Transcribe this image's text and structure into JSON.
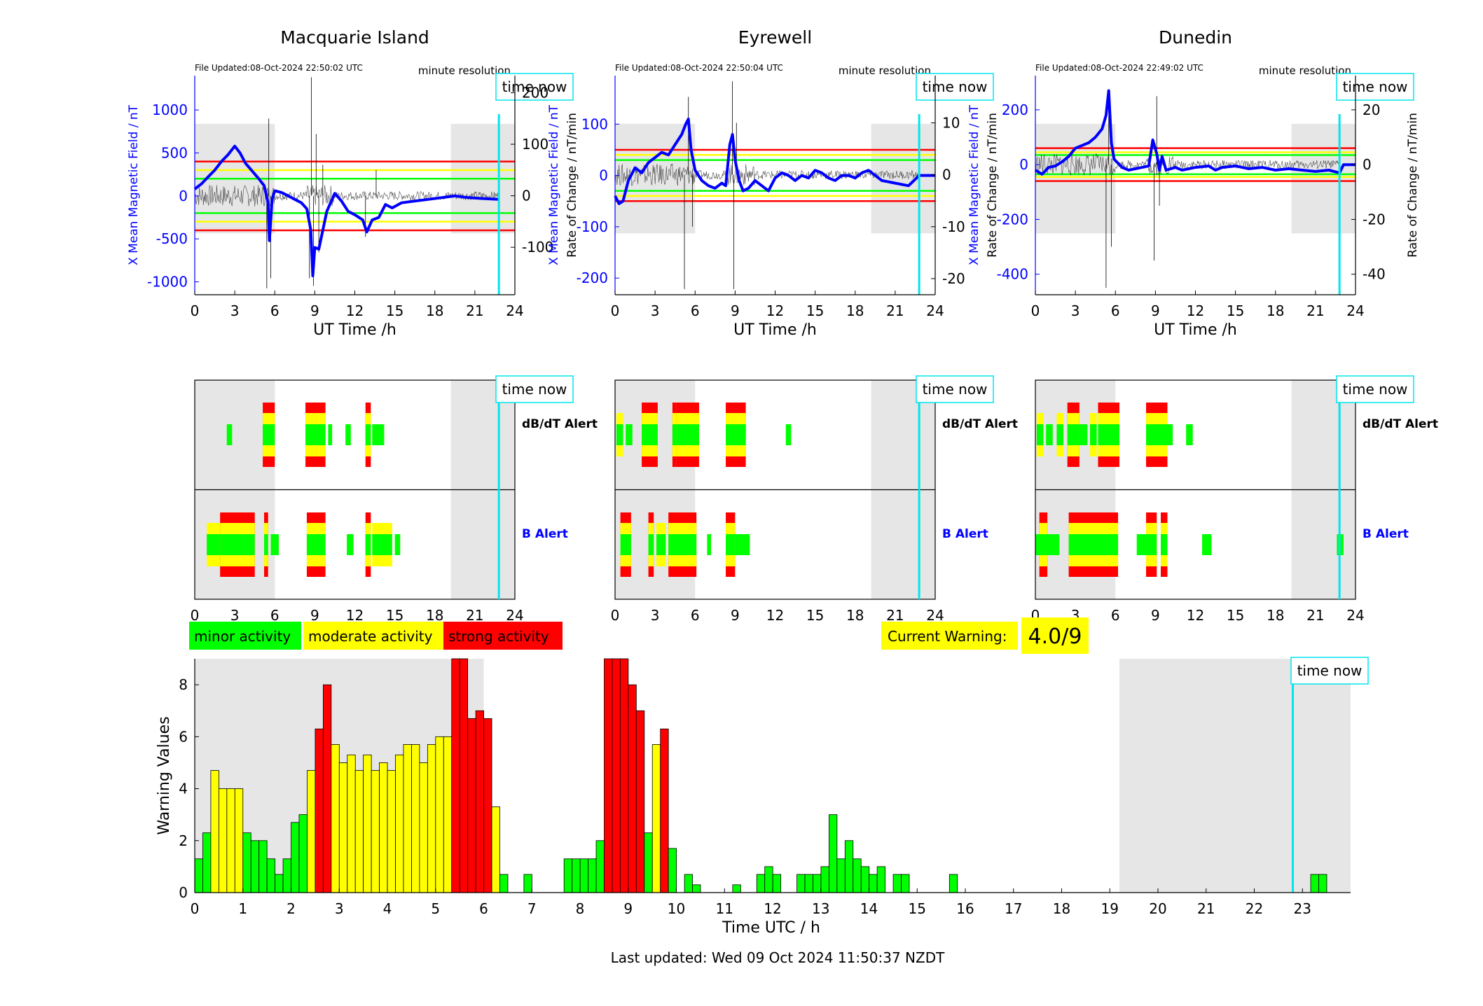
{
  "footer": {
    "last_updated": "Last updated: Wed 09 Oct 2024 11:50:37 NZDT"
  },
  "colors": {
    "minor": "#00ff00",
    "moderate": "#ffff00",
    "strong": "#ff0000",
    "x_field": "#0000ff",
    "rate": "#000000",
    "time_now": "#00e5ee",
    "night_shade": "#e6e6e6"
  },
  "common": {
    "time_now_label": "time now",
    "ut_xlabel": "UT Time /h",
    "resolution": "minute resolution",
    "db_dt_alert": "dB/dT Alert",
    "b_alert": "B Alert",
    "time_now_h": 22.8,
    "night_periods_h": [
      [
        0,
        6
      ],
      [
        19.2,
        24
      ]
    ]
  },
  "legend": {
    "minor": "minor activity",
    "moderate": "moderate activity",
    "strong": "strong activity"
  },
  "current_warning": {
    "label": "Current Warning:",
    "value": "4.0/9"
  },
  "chart_data": [
    {
      "type": "line",
      "title": "Macquarie Island",
      "file_updated": "File Updated:08-Oct-2024 22:50:02 UTC",
      "xlabel": "UT Time /h",
      "ylabel": "X Mean Magnetic Field / nT",
      "y2label": "Rate of Change / nT/min",
      "xlim": [
        0,
        24
      ],
      "xticks": [
        "0",
        "3",
        "6",
        "9",
        "12",
        "15",
        "18",
        "21",
        "24"
      ],
      "ylim": [
        -1150,
        1400
      ],
      "yticks": [
        "-1000",
        "-500",
        "0",
        "500",
        "1000"
      ],
      "y2lim": [
        -192.2,
        233.3
      ],
      "y2ticks": [
        "-100",
        "0",
        "100",
        "200"
      ],
      "thresholds": {
        "minor": 200,
        "moderate": 300,
        "strong": 400
      },
      "x_field": [
        [
          0,
          80
        ],
        [
          0.5,
          140
        ],
        [
          1,
          220
        ],
        [
          1.5,
          300
        ],
        [
          2,
          400
        ],
        [
          2.5,
          480
        ],
        [
          3,
          580
        ],
        [
          3.4,
          500
        ],
        [
          3.8,
          380
        ],
        [
          4.3,
          290
        ],
        [
          4.8,
          200
        ],
        [
          5.2,
          120
        ],
        [
          5.5,
          -80
        ],
        [
          5.6,
          -520
        ],
        [
          5.8,
          -40
        ],
        [
          6,
          60
        ],
        [
          6.5,
          40
        ],
        [
          7,
          0
        ],
        [
          7.5,
          -40
        ],
        [
          8,
          -80
        ],
        [
          8.4,
          -150
        ],
        [
          8.7,
          -400
        ],
        [
          8.85,
          -930
        ],
        [
          9,
          -600
        ],
        [
          9.3,
          -620
        ],
        [
          9.6,
          -400
        ],
        [
          9.9,
          -180
        ],
        [
          10.5,
          30
        ],
        [
          11,
          -60
        ],
        [
          11.5,
          -180
        ],
        [
          12,
          -220
        ],
        [
          12.6,
          -280
        ],
        [
          12.9,
          -420
        ],
        [
          13.3,
          -280
        ],
        [
          13.8,
          -250
        ],
        [
          14.3,
          -100
        ],
        [
          14.8,
          -140
        ],
        [
          15.5,
          -80
        ],
        [
          16.5,
          -60
        ],
        [
          17.5,
          -40
        ],
        [
          18.5,
          -20
        ],
        [
          19.5,
          0
        ],
        [
          20.5,
          -20
        ],
        [
          21.5,
          -30
        ],
        [
          22.8,
          -40
        ]
      ],
      "rate_peaks": [
        [
          5.4,
          -180
        ],
        [
          5.55,
          150
        ],
        [
          5.7,
          -160
        ],
        [
          8.6,
          -160
        ],
        [
          8.75,
          230
        ],
        [
          8.9,
          -175
        ],
        [
          9.1,
          120
        ],
        [
          9.3,
          -110
        ],
        [
          9.6,
          60
        ],
        [
          12.8,
          -80
        ],
        [
          13.6,
          50
        ]
      ],
      "b_alert": [
        {
          "start": 0.9,
          "end": 2.2,
          "level": "moderate"
        },
        {
          "start": 1.9,
          "end": 4.5,
          "level": "strong"
        },
        {
          "start": 5.2,
          "end": 5.5,
          "level": "strong"
        },
        {
          "start": 5.7,
          "end": 6.3,
          "level": "minor"
        },
        {
          "start": 8.4,
          "end": 9.8,
          "level": "strong"
        },
        {
          "start": 11.4,
          "end": 11.9,
          "level": "minor"
        },
        {
          "start": 12.8,
          "end": 13.2,
          "level": "strong"
        },
        {
          "start": 13.3,
          "end": 14.8,
          "level": "moderate"
        },
        {
          "start": 15,
          "end": 15.4,
          "level": "minor"
        }
      ],
      "dbdt_alert": [
        {
          "start": 2.4,
          "end": 2.8,
          "level": "minor"
        },
        {
          "start": 5.1,
          "end": 6,
          "level": "strong"
        },
        {
          "start": 8.3,
          "end": 9.8,
          "level": "strong"
        },
        {
          "start": 10,
          "end": 10.3,
          "level": "minor"
        },
        {
          "start": 11.3,
          "end": 11.7,
          "level": "minor"
        },
        {
          "start": 12.8,
          "end": 13.2,
          "level": "strong"
        },
        {
          "start": 13.3,
          "end": 14.2,
          "level": "minor"
        }
      ]
    },
    {
      "type": "line",
      "title": "Eyrewell",
      "file_updated": "File Updated:08-Oct-2024 22:50:04 UTC",
      "xlabel": "UT Time /h",
      "ylabel": "X Mean Magnetic Field / nT",
      "y2label": "Rate of Change / nT/min",
      "xlim": [
        0,
        24
      ],
      "xticks": [
        "0",
        "3",
        "6",
        "9",
        "12",
        "15",
        "18",
        "21",
        "24"
      ],
      "ylim": [
        -232.5,
        194.6
      ],
      "yticks": [
        "-200",
        "-100",
        "0",
        "100"
      ],
      "y2lim": [
        -23.1,
        19.1
      ],
      "y2ticks": [
        "-20",
        "-10",
        "0",
        "10"
      ],
      "thresholds": {
        "minor": 30,
        "moderate": 40,
        "strong": 50
      },
      "x_field": [
        [
          0,
          -40
        ],
        [
          0.3,
          -55
        ],
        [
          0.6,
          -50
        ],
        [
          1,
          -10
        ],
        [
          1.5,
          15
        ],
        [
          2,
          5
        ],
        [
          2.5,
          25
        ],
        [
          3,
          35
        ],
        [
          3.5,
          45
        ],
        [
          4,
          40
        ],
        [
          4.5,
          60
        ],
        [
          5,
          80
        ],
        [
          5.3,
          100
        ],
        [
          5.5,
          110
        ],
        [
          5.7,
          50
        ],
        [
          6,
          10
        ],
        [
          6.5,
          -10
        ],
        [
          7,
          -20
        ],
        [
          7.5,
          -25
        ],
        [
          8,
          -15
        ],
        [
          8.3,
          -20
        ],
        [
          8.6,
          60
        ],
        [
          8.8,
          80
        ],
        [
          9,
          30
        ],
        [
          9.3,
          -10
        ],
        [
          9.6,
          -30
        ],
        [
          10,
          -25
        ],
        [
          10.5,
          -10
        ],
        [
          11,
          -20
        ],
        [
          11.5,
          -30
        ],
        [
          12,
          -5
        ],
        [
          12.5,
          5
        ],
        [
          13,
          0
        ],
        [
          13.5,
          -10
        ],
        [
          14,
          0
        ],
        [
          14.5,
          -5
        ],
        [
          15,
          10
        ],
        [
          15.5,
          5
        ],
        [
          16,
          -5
        ],
        [
          16.5,
          -10
        ],
        [
          17,
          0
        ],
        [
          17.5,
          0
        ],
        [
          18,
          -5
        ],
        [
          18.5,
          5
        ],
        [
          19,
          10
        ],
        [
          19.5,
          0
        ],
        [
          20,
          -10
        ],
        [
          21,
          -15
        ],
        [
          22,
          -20
        ],
        [
          22.8,
          0
        ],
        [
          24,
          0
        ]
      ],
      "rate_peaks": [
        [
          5.2,
          -22
        ],
        [
          5.5,
          15
        ],
        [
          5.8,
          -10
        ],
        [
          8.8,
          18
        ],
        [
          8.9,
          -22
        ],
        [
          9.1,
          10
        ]
      ],
      "b_alert": [
        {
          "start": 0.4,
          "end": 1.2,
          "level": "strong"
        },
        {
          "start": 2.5,
          "end": 2.9,
          "level": "strong"
        },
        {
          "start": 3.1,
          "end": 3.8,
          "level": "moderate"
        },
        {
          "start": 4,
          "end": 6.1,
          "level": "strong"
        },
        {
          "start": 6.9,
          "end": 7.2,
          "level": "minor"
        },
        {
          "start": 8.3,
          "end": 9,
          "level": "strong"
        },
        {
          "start": 9,
          "end": 10.1,
          "level": "minor"
        }
      ],
      "dbdt_alert": [
        {
          "start": 0.1,
          "end": 0.6,
          "level": "moderate"
        },
        {
          "start": 0.8,
          "end": 1.3,
          "level": "minor"
        },
        {
          "start": 2,
          "end": 3.2,
          "level": "strong"
        },
        {
          "start": 4.3,
          "end": 4.6,
          "level": "strong"
        },
        {
          "start": 4.6,
          "end": 6.3,
          "level": "strong"
        },
        {
          "start": 8.3,
          "end": 9.8,
          "level": "strong"
        },
        {
          "start": 12.8,
          "end": 13.2,
          "level": "minor"
        }
      ]
    },
    {
      "type": "line",
      "title": "Dunedin",
      "file_updated": "File Updated:08-Oct-2024 22:49:02 UTC",
      "xlabel": "UT Time /h",
      "ylabel": "X Mean Magnetic Field / nT",
      "y2label": "Rate of Change / nT/min",
      "xlim": [
        0,
        24
      ],
      "xticks": [
        "0",
        "3",
        "6",
        "9",
        "12",
        "15",
        "18",
        "21",
        "24"
      ],
      "ylim": [
        -475,
        325
      ],
      "yticks": [
        "-400",
        "-200",
        "0",
        "200"
      ],
      "y2lim": [
        -47.5,
        32.5
      ],
      "y2ticks": [
        "-40",
        "-20",
        "0",
        "20"
      ],
      "thresholds": {
        "minor": 35,
        "moderate": 45,
        "strong": 60
      },
      "x_field": [
        [
          0,
          -20
        ],
        [
          0.5,
          -35
        ],
        [
          1,
          -10
        ],
        [
          1.5,
          -5
        ],
        [
          2,
          10
        ],
        [
          2.5,
          30
        ],
        [
          3,
          60
        ],
        [
          3.5,
          70
        ],
        [
          4,
          80
        ],
        [
          4.5,
          100
        ],
        [
          5,
          130
        ],
        [
          5.3,
          180
        ],
        [
          5.5,
          270
        ],
        [
          5.7,
          80
        ],
        [
          5.9,
          20
        ],
        [
          6.5,
          -10
        ],
        [
          7,
          -20
        ],
        [
          7.5,
          -15
        ],
        [
          8,
          -10
        ],
        [
          8.5,
          -5
        ],
        [
          8.8,
          90
        ],
        [
          9.1,
          40
        ],
        [
          9.3,
          -20
        ],
        [
          9.5,
          30
        ],
        [
          9.8,
          -20
        ],
        [
          10.5,
          -10
        ],
        [
          11,
          -20
        ],
        [
          12,
          -10
        ],
        [
          13,
          -5
        ],
        [
          13.5,
          -20
        ],
        [
          14,
          -10
        ],
        [
          15,
          -5
        ],
        [
          15.5,
          -10
        ],
        [
          16,
          -15
        ],
        [
          17,
          -10
        ],
        [
          18,
          -20
        ],
        [
          19,
          -15
        ],
        [
          20,
          -20
        ],
        [
          21,
          -25
        ],
        [
          22,
          -20
        ],
        [
          22.8,
          -30
        ],
        [
          23.1,
          0
        ],
        [
          24,
          0
        ]
      ],
      "rate_peaks": [
        [
          5.3,
          -45
        ],
        [
          5.5,
          25
        ],
        [
          5.7,
          -30
        ],
        [
          8.9,
          -35
        ],
        [
          9.1,
          25
        ],
        [
          9.3,
          -15
        ]
      ],
      "b_alert": [
        {
          "start": 0.3,
          "end": 0.9,
          "level": "strong"
        },
        {
          "start": 0,
          "end": 1.8,
          "level": "minor"
        },
        {
          "start": 2.5,
          "end": 6.2,
          "level": "strong"
        },
        {
          "start": 7.6,
          "end": 8.8,
          "level": "minor"
        },
        {
          "start": 8.3,
          "end": 9.1,
          "level": "strong"
        },
        {
          "start": 9.4,
          "end": 9.9,
          "level": "strong"
        },
        {
          "start": 12.5,
          "end": 13.2,
          "level": "minor"
        },
        {
          "start": 22.6,
          "end": 23.1,
          "level": "minor"
        }
      ],
      "dbdt_alert": [
        {
          "start": 0.1,
          "end": 0.6,
          "level": "moderate"
        },
        {
          "start": 0.8,
          "end": 1.3,
          "level": "minor"
        },
        {
          "start": 1.6,
          "end": 2.1,
          "level": "moderate"
        },
        {
          "start": 2.4,
          "end": 3.3,
          "level": "strong"
        },
        {
          "start": 3.3,
          "end": 3.9,
          "level": "minor"
        },
        {
          "start": 4.1,
          "end": 4.6,
          "level": "moderate"
        },
        {
          "start": 4.7,
          "end": 6.3,
          "level": "strong"
        },
        {
          "start": 8.3,
          "end": 9.9,
          "level": "strong"
        },
        {
          "start": 9.9,
          "end": 10.3,
          "level": "minor"
        },
        {
          "start": 11.3,
          "end": 11.8,
          "level": "minor"
        }
      ]
    },
    {
      "type": "bar",
      "xlabel": "Time UTC / h",
      "ylabel": "Warning Values",
      "xlim": [
        0,
        24
      ],
      "xticks": [
        "0",
        "1",
        "2",
        "3",
        "4",
        "5",
        "6",
        "7",
        "8",
        "9",
        "10",
        "11",
        "12",
        "13",
        "14",
        "15",
        "16",
        "17",
        "18",
        "19",
        "20",
        "21",
        "22",
        "23"
      ],
      "ylim": [
        0,
        9
      ],
      "yticks": [
        "0",
        "2",
        "4",
        "6",
        "8"
      ],
      "bin_width_h": 0.1667,
      "values": [
        1.3,
        2.3,
        4.7,
        4.0,
        4.0,
        4.0,
        2.3,
        2.0,
        2.0,
        1.3,
        0.7,
        1.3,
        2.7,
        3.0,
        4.7,
        6.3,
        8.0,
        5.7,
        5.0,
        5.3,
        4.7,
        5.3,
        4.7,
        5.0,
        4.7,
        5.3,
        5.7,
        5.7,
        5.0,
        5.7,
        6.0,
        6.0,
        9.0,
        9.0,
        6.7,
        7.0,
        6.7,
        3.3,
        0.7,
        0,
        0,
        0.7,
        0,
        0,
        0,
        0,
        1.3,
        1.3,
        1.3,
        1.3,
        2.0,
        9.0,
        9.0,
        9.0,
        8.0,
        7.0,
        2.3,
        5.7,
        6.3,
        1.7,
        0,
        0.7,
        0.3,
        0,
        0,
        0,
        0,
        0.3,
        0,
        0,
        0.7,
        1.0,
        0.7,
        0,
        0,
        0.7,
        0.7,
        0.7,
        1.0,
        3.0,
        1.3,
        2.0,
        1.3,
        1.0,
        0.7,
        1.0,
        0,
        0.7,
        0.7,
        0,
        0,
        0,
        0,
        0,
        0.7,
        0,
        0,
        0,
        0,
        0,
        0,
        0,
        0,
        0,
        0,
        0,
        0,
        0,
        0,
        0,
        0,
        0,
        0,
        0,
        0,
        0,
        0,
        0,
        0,
        0,
        0,
        0,
        0,
        0,
        0,
        0,
        0,
        0,
        0,
        0,
        0,
        0,
        0,
        0,
        0,
        0,
        0,
        0,
        0,
        0.7,
        0.7,
        0,
        0,
        0,
        0,
        0,
        0,
        0
      ]
    }
  ]
}
